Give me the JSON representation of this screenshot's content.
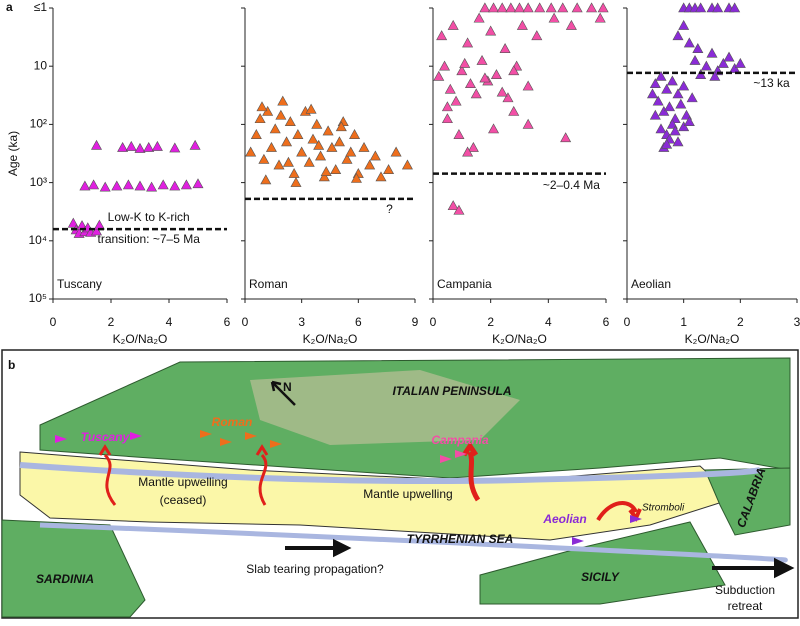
{
  "panel_label": "a",
  "chart_data": [
    {
      "type": "scatter",
      "title": "Tuscany",
      "xlabel": "K₂O/Na₂O",
      "ylabel": "Age (ka)",
      "color": "#e020e0",
      "log_scale_y": true,
      "y_inverted": true,
      "xlim": [
        0,
        6
      ],
      "xticks": [
        0,
        2,
        4,
        6
      ],
      "ylim": [
        1,
        100000
      ],
      "yticks": [
        {
          "value": 1,
          "label": "≤1"
        },
        10,
        {
          "value": 100,
          "label": "10²"
        },
        {
          "value": 1000,
          "label": "10³"
        },
        {
          "value": 10000,
          "label": "10⁴"
        },
        {
          "value": 100000,
          "label": "10⁵"
        }
      ],
      "x": [
        0.7,
        0.8,
        0.9,
        1.0,
        1.1,
        1.2,
        1.3,
        1.5,
        1.6,
        1.1,
        1.4,
        1.8,
        2.2,
        2.6,
        3.0,
        3.4,
        3.8,
        4.2,
        4.6,
        5.0,
        1.5,
        2.4,
        2.7,
        3.0,
        3.3,
        3.6,
        4.2,
        4.9
      ],
      "values": [
        5000,
        6500,
        7500,
        5500,
        7000,
        6000,
        7200,
        6800,
        5400,
        1150,
        1100,
        1200,
        1150,
        1100,
        1150,
        1200,
        1100,
        1150,
        1100,
        1050,
        230,
        250,
        240,
        260,
        250,
        240,
        255,
        230
      ],
      "threshold": 6300,
      "annotations": [
        "Low-K to K-rich",
        "transition: ~7–5 Ma"
      ]
    },
    {
      "type": "scatter",
      "title": "Roman",
      "xlabel": "K₂O/Na₂O",
      "color": "#ee6e1c",
      "log_scale_y": true,
      "y_inverted": true,
      "xlim": [
        0,
        9
      ],
      "xticks": [
        0,
        3,
        6,
        9
      ],
      "ylim": [
        1,
        100000
      ],
      "x": [
        0.3,
        0.6,
        0.8,
        1.0,
        1.2,
        1.4,
        1.6,
        1.8,
        2.0,
        2.2,
        2.4,
        2.6,
        2.8,
        3.0,
        3.2,
        3.4,
        3.6,
        3.8,
        4.0,
        4.2,
        4.4,
        4.6,
        4.8,
        5.0,
        5.2,
        5.4,
        5.6,
        5.8,
        6.0,
        6.3,
        6.6,
        6.9,
        7.2,
        7.6,
        8.0,
        8.6,
        1.1,
        1.9,
        2.7,
        3.5,
        4.3,
        5.1,
        5.9,
        0.9,
        2.3,
        3.9
      ],
      "values": [
        300,
        150,
        80,
        400,
        60,
        250,
        120,
        500,
        40,
        200,
        90,
        700,
        150,
        300,
        60,
        450,
        180,
        100,
        350,
        800,
        130,
        250,
        600,
        200,
        90,
        400,
        300,
        150,
        700,
        250,
        500,
        350,
        800,
        600,
        300,
        500,
        900,
        70,
        1000,
        55,
        650,
        110,
        850,
        50,
        450,
        230
      ],
      "threshold": 1900,
      "annotations": [
        "?"
      ]
    },
    {
      "type": "scatter",
      "title": "Campania",
      "xlabel": "K₂O/Na₂O",
      "color": "#f24fa6",
      "log_scale_y": true,
      "y_inverted": true,
      "xlim": [
        0,
        6
      ],
      "xticks": [
        0,
        2,
        4,
        6
      ],
      "ylim": [
        1,
        100000
      ],
      "x": [
        1.8,
        2.1,
        2.4,
        2.7,
        3.0,
        3.3,
        3.7,
        4.1,
        4.5,
        5.0,
        5.5,
        5.9,
        0.3,
        0.7,
        1.2,
        1.6,
        2.0,
        2.5,
        3.1,
        3.6,
        4.2,
        4.8,
        5.8,
        0.2,
        0.4,
        0.6,
        0.8,
        1.0,
        1.3,
        1.5,
        1.7,
        1.9,
        2.2,
        2.6,
        2.9,
        3.3,
        0.5,
        1.1,
        1.8,
        2.4,
        2.8,
        0.5,
        0.9,
        1.4,
        2.1,
        2.8,
        4.6,
        1.2,
        3.3,
        0.7,
        0.9
      ],
      "values": [
        1,
        1,
        1,
        1,
        1,
        1,
        1,
        1,
        1,
        1,
        1,
        1,
        3,
        2,
        4,
        1.5,
        2.5,
        5,
        2,
        3,
        1.5,
        2,
        1.5,
        15,
        10,
        25,
        40,
        12,
        20,
        30,
        8,
        18,
        14,
        35,
        10,
        22,
        50,
        9,
        16,
        28,
        12,
        80,
        150,
        250,
        120,
        60,
        170,
        300,
        100,
        2500,
        3000
      ],
      "threshold": 700,
      "annotations": [
        "~2–0.4 Ma"
      ]
    },
    {
      "type": "scatter",
      "title": "Aeolian",
      "xlabel": "K₂O/Na₂O",
      "color": "#8a2bd6",
      "log_scale_y": true,
      "y_inverted": true,
      "xlim": [
        0,
        3
      ],
      "xticks": [
        0,
        1,
        2,
        3
      ],
      "ylim": [
        1,
        100000
      ],
      "x": [
        1.0,
        1.1,
        1.2,
        1.3,
        1.5,
        1.6,
        1.8,
        1.9,
        1.2,
        1.4,
        1.5,
        1.6,
        1.7,
        1.8,
        1.9,
        2.0,
        1.3,
        1.55,
        0.9,
        1.0,
        1.1,
        1.25,
        0.5,
        0.6,
        0.7,
        0.8,
        0.9,
        1.0,
        0.55,
        0.65,
        0.75,
        0.85,
        0.95,
        1.05,
        1.15,
        0.6,
        0.7,
        0.8,
        0.9,
        0.65,
        0.75,
        0.85,
        1.0,
        1.1,
        0.5,
        0.45,
        0.7
      ],
      "values": [
        1,
        1,
        1,
        1,
        1,
        1,
        1,
        1,
        8,
        10,
        6,
        12,
        9,
        7,
        11,
        9,
        14,
        15,
        3,
        2,
        4,
        5,
        20,
        15,
        25,
        18,
        30,
        22,
        40,
        60,
        50,
        80,
        45,
        70,
        35,
        120,
        150,
        100,
        200,
        250,
        180,
        130,
        110,
        90,
        70,
        30,
        220
      ],
      "threshold": 13,
      "annotations": [
        "~13 ka"
      ]
    }
  ],
  "map": {
    "panel_label": "b",
    "north": "N",
    "peninsula": "ITALIAN PENINSULA",
    "tuscany": "Tuscany",
    "roman": "Roman",
    "campania": "Campania",
    "upwelling_ceased": [
      "Mantle upwelling",
      "(ceased)"
    ],
    "upwelling": "Mantle upwelling",
    "aeolian": "Aeolian",
    "stromboli": "Stromboli",
    "calabria": "CALABRIA",
    "sea": "TYRRHENIAN SEA",
    "sardinia": "SARDINIA",
    "sicily": "SICILY",
    "slab": "Slab tearing propagation?",
    "retreat": [
      "Subduction",
      "retreat"
    ]
  }
}
